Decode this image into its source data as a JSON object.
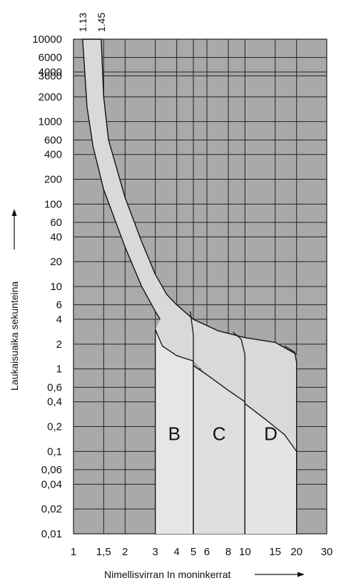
{
  "chart_data": {
    "type": "line",
    "title": "",
    "xlabel": "Nimellisvirran In moninkerrat",
    "ylabel": "Laukaisuaika sekunteina",
    "x_scale": "log",
    "y_scale": "log",
    "xlim": [
      1,
      30
    ],
    "ylim": [
      0.01,
      10000
    ],
    "x_ticks": [
      {
        "v": 1,
        "label": "1"
      },
      {
        "v": 1.5,
        "label": "1,5"
      },
      {
        "v": 2,
        "label": "2"
      },
      {
        "v": 3,
        "label": "3"
      },
      {
        "v": 4,
        "label": "4"
      },
      {
        "v": 5,
        "label": "5"
      },
      {
        "v": 6,
        "label": "6"
      },
      {
        "v": 8,
        "label": "8"
      },
      {
        "v": 10,
        "label": "10"
      },
      {
        "v": 15,
        "label": "15"
      },
      {
        "v": 20,
        "label": "20"
      },
      {
        "v": 30,
        "label": "30"
      }
    ],
    "y_ticks": [
      {
        "v": 10000,
        "label": "10000"
      },
      {
        "v": 6000,
        "label": "6000"
      },
      {
        "v": 4000,
        "label": "4000"
      },
      {
        "v": 3600,
        "label": "3600"
      },
      {
        "v": 2000,
        "label": "2000"
      },
      {
        "v": 1000,
        "label": "1000"
      },
      {
        "v": 600,
        "label": "600"
      },
      {
        "v": 400,
        "label": "400"
      },
      {
        "v": 200,
        "label": "200"
      },
      {
        "v": 100,
        "label": "100"
      },
      {
        "v": 60,
        "label": "60"
      },
      {
        "v": 40,
        "label": "40"
      },
      {
        "v": 20,
        "label": "20"
      },
      {
        "v": 10,
        "label": "10"
      },
      {
        "v": 6,
        "label": "6"
      },
      {
        "v": 4,
        "label": "4"
      },
      {
        "v": 2,
        "label": "2"
      },
      {
        "v": 1,
        "label": "1"
      },
      {
        "v": 0.6,
        "label": "0,6"
      },
      {
        "v": 0.4,
        "label": "0,4"
      },
      {
        "v": 0.2,
        "label": "0,2"
      },
      {
        "v": 0.1,
        "label": "0,1"
      },
      {
        "v": 0.06,
        "label": "0,06"
      },
      {
        "v": 0.04,
        "label": "0,04"
      },
      {
        "v": 0.02,
        "label": "0,02"
      },
      {
        "v": 0.01,
        "label": "0,01"
      }
    ],
    "top_markers": [
      {
        "v": 1.13,
        "label": "1.13"
      },
      {
        "v": 1.45,
        "label": "1.45"
      }
    ],
    "grid": true,
    "region_labels": [
      "B",
      "C",
      "D"
    ],
    "series": [
      {
        "name": "",
        "role": "thermal-lower",
        "points": [
          [
            1.13,
            10000
          ],
          [
            1.2,
            1500
          ],
          [
            1.3,
            500
          ],
          [
            1.5,
            150
          ],
          [
            2,
            30
          ],
          [
            2.5,
            10
          ],
          [
            3,
            5
          ],
          [
            3.2,
            4
          ]
        ]
      },
      {
        "name": "",
        "role": "thermal-upper",
        "points": [
          [
            1.45,
            10000
          ],
          [
            1.5,
            2000
          ],
          [
            1.6,
            600
          ],
          [
            2,
            120
          ],
          [
            2.5,
            35
          ],
          [
            3,
            14
          ],
          [
            3.5,
            8
          ],
          [
            4,
            6
          ],
          [
            5,
            4
          ],
          [
            7,
            2.9
          ],
          [
            10,
            2.4
          ],
          [
            15,
            2.1
          ],
          [
            20,
            1.5
          ]
        ]
      },
      {
        "name": "B",
        "trip_band": [
          3,
          5
        ],
        "lower": [
          [
            3,
            0.01
          ],
          [
            3,
            3
          ],
          [
            3.3,
            1.9
          ],
          [
            4,
            1.45
          ],
          [
            5,
            1.25
          ],
          [
            5,
            0.01
          ]
        ],
        "upper": [
          [
            4.8,
            5
          ],
          [
            5,
            2.6
          ],
          [
            5,
            0.01
          ]
        ]
      },
      {
        "name": "C",
        "trip_band": [
          5,
          10
        ],
        "lower": [
          [
            5,
            1.1
          ],
          [
            6,
            0.85
          ],
          [
            8,
            0.55
          ],
          [
            10,
            0.4
          ],
          [
            10,
            0.01
          ]
        ],
        "upper": [
          [
            8.5,
            2.8
          ],
          [
            9.5,
            2.3
          ],
          [
            10,
            1.5
          ],
          [
            10,
            0.01
          ]
        ]
      },
      {
        "name": "D",
        "trip_band": [
          10,
          20
        ],
        "lower": [
          [
            10,
            0.38
          ],
          [
            13,
            0.25
          ],
          [
            17,
            0.16
          ],
          [
            20,
            0.1
          ],
          [
            20,
            0.01
          ]
        ],
        "upper": [
          [
            17,
            1.9
          ],
          [
            19.5,
            1.6
          ],
          [
            20,
            1.2
          ],
          [
            20,
            0.01
          ]
        ]
      }
    ]
  }
}
